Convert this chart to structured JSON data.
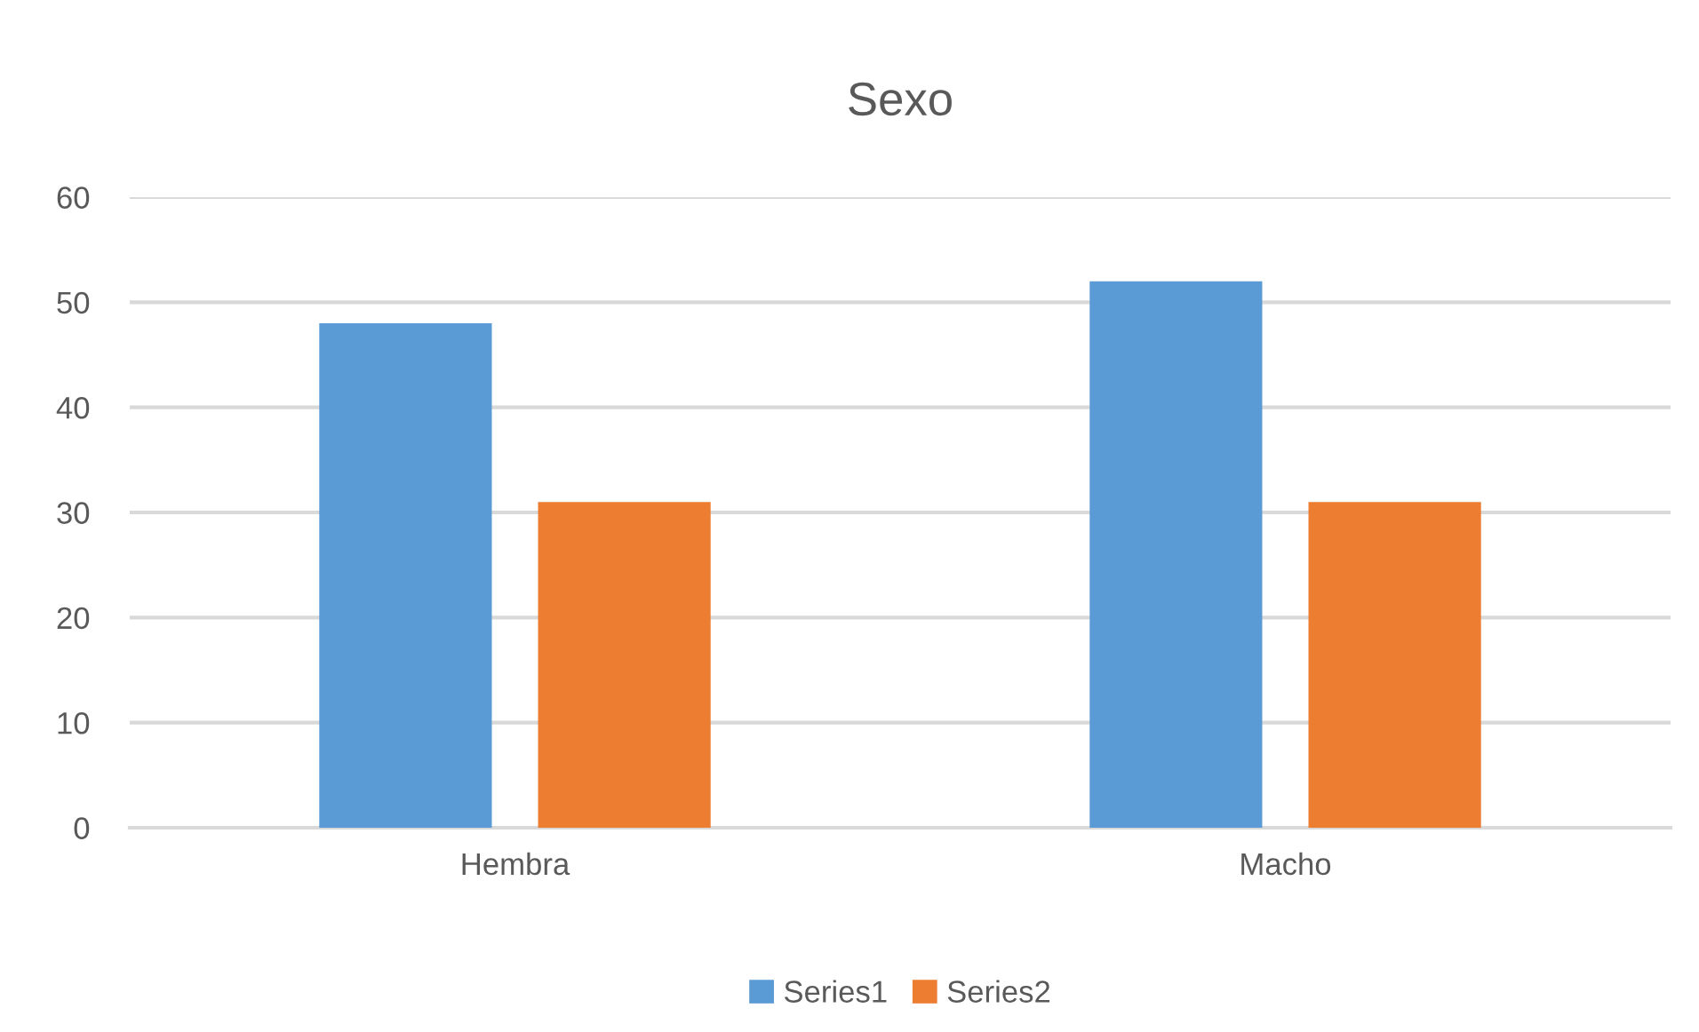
{
  "chart_data": {
    "type": "bar",
    "title": "Sexo",
    "categories": [
      "Hembra",
      "Macho"
    ],
    "series": [
      {
        "name": "Series1",
        "color": "#5b9bd5",
        "values": [
          48,
          52
        ]
      },
      {
        "name": "Series2",
        "color": "#ed7d31",
        "values": [
          31,
          31
        ]
      }
    ],
    "ylim": [
      0,
      60
    ],
    "yticks": [
      0,
      10,
      20,
      30,
      40,
      50,
      60
    ],
    "grid": "y",
    "legend": "bottom"
  }
}
